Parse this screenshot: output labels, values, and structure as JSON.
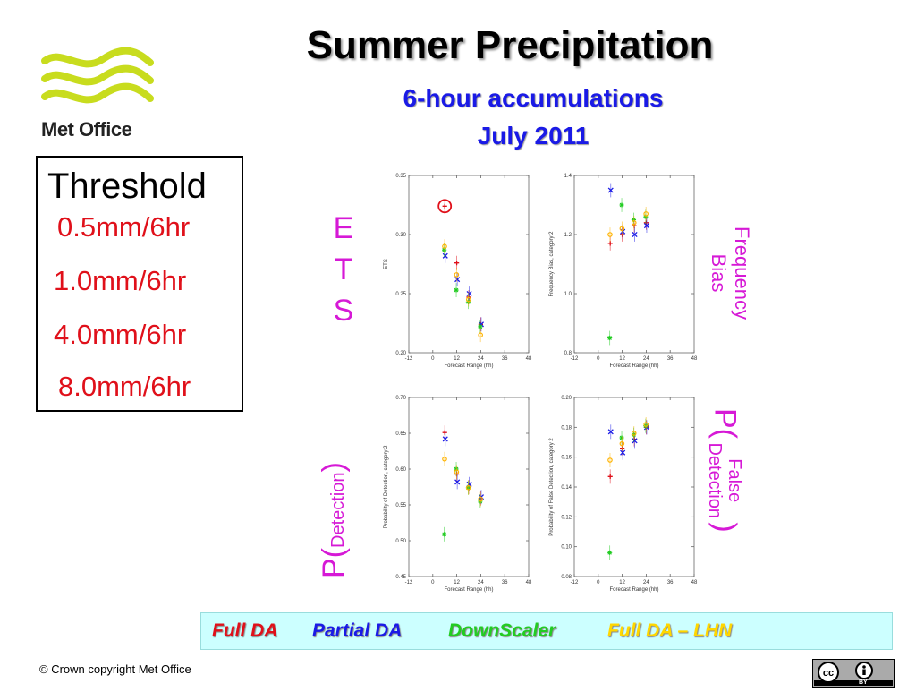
{
  "slide": {
    "logo_text": "Met Office",
    "title": "Summer Precipitation",
    "subtitle_line1": "6-hour accumulations",
    "subtitle_line2": "July 2011",
    "threshold": {
      "title": "Threshold",
      "values": [
        "0.5mm/6hr",
        "1.0mm/6hr",
        "4.0mm/6hr",
        "8.0mm/6hr"
      ]
    },
    "side_labels": {
      "ets": [
        "E",
        "T",
        "S"
      ],
      "freq_bias": "Frequency Bias",
      "p_detection_prefix": "P(",
      "p_detection_text": "Detection",
      "p_detection_suffix": ")",
      "p_false_prefix": "P(",
      "p_false_text1": "False",
      "p_false_text2": "Detection",
      "p_false_suffix": ")"
    },
    "legend": [
      "Full DA",
      "Partial DA",
      "DownScaler",
      "Full DA – LHN"
    ],
    "copyright": "© Crown copyright   Met Office",
    "cc_badge": "BY"
  },
  "colors": {
    "title_blue": "#1a1ae6",
    "threshold_red": "#e0101a",
    "magenta": "#d619d6",
    "full_da": "#e0101a",
    "partial_da": "#1a1ae6",
    "downscaler": "#22cc22",
    "full_da_lhn": "#ffb300",
    "legend_bg": "#ccffff",
    "logo_green": "#c8dc1e"
  },
  "chart_data": [
    {
      "type": "scatter",
      "title": "",
      "xlabel": "Forecast Range (hh)",
      "ylabel": "ETS",
      "xlim": [
        -12,
        48
      ],
      "ylim": [
        0.2,
        0.35
      ],
      "xticks": [
        -12,
        0,
        12,
        24,
        36,
        48
      ],
      "yticks": [
        0.2,
        0.25,
        0.3,
        0.35
      ],
      "ytick_labels": [
        "0.20",
        "0.25",
        "0.30",
        "0.35"
      ],
      "grid": false,
      "highlight": {
        "x": 6,
        "y": 0.324
      },
      "series": [
        {
          "name": "Full DA",
          "marker": "+",
          "color": "#e0101a",
          "x": [
            6,
            12,
            18,
            24
          ],
          "y": [
            0.324,
            0.276,
            0.247,
            0.224
          ]
        },
        {
          "name": "Partial DA",
          "marker": "x",
          "color": "#1a1ae6",
          "x": [
            6,
            12,
            18,
            24
          ],
          "y": [
            0.282,
            0.262,
            0.25,
            0.224
          ]
        },
        {
          "name": "DownScaler",
          "marker": "*",
          "color": "#22cc22",
          "x": [
            6,
            12,
            18,
            24
          ],
          "y": [
            0.287,
            0.253,
            0.243,
            0.222
          ]
        },
        {
          "name": "Full DA – LHN",
          "marker": "o",
          "color": "#ffb300",
          "x": [
            6,
            12,
            18,
            24
          ],
          "y": [
            0.29,
            0.266,
            0.245,
            0.215
          ]
        }
      ]
    },
    {
      "type": "scatter",
      "title": "",
      "xlabel": "Forecast Range (hh)",
      "ylabel": "Frequency Bias, category 2",
      "xlim": [
        -12,
        48
      ],
      "ylim": [
        0.8,
        1.4
      ],
      "xticks": [
        -12,
        0,
        12,
        24,
        36,
        48
      ],
      "yticks": [
        0.8,
        1.0,
        1.2,
        1.4
      ],
      "ytick_labels": [
        "0.8",
        "1.0",
        "1.2",
        "1.4"
      ],
      "grid": false,
      "series": [
        {
          "name": "Full DA",
          "marker": "+",
          "color": "#e0101a",
          "x": [
            6,
            12,
            18,
            24
          ],
          "y": [
            1.17,
            1.2,
            1.23,
            1.24
          ]
        },
        {
          "name": "Partial DA",
          "marker": "x",
          "color": "#1a1ae6",
          "x": [
            6,
            12,
            18,
            24
          ],
          "y": [
            1.35,
            1.21,
            1.2,
            1.23
          ]
        },
        {
          "name": "DownScaler",
          "marker": "*",
          "color": "#22cc22",
          "x": [
            6,
            12,
            18,
            24
          ],
          "y": [
            0.85,
            1.3,
            1.25,
            1.26
          ]
        },
        {
          "name": "Full DA – LHN",
          "marker": "o",
          "color": "#ffb300",
          "x": [
            6,
            12,
            18,
            24
          ],
          "y": [
            1.2,
            1.22,
            1.24,
            1.27
          ]
        }
      ]
    },
    {
      "type": "scatter",
      "title": "",
      "xlabel": "Forecast Range (hh)",
      "ylabel": "Probability of Detection, category 2",
      "xlim": [
        -12,
        48
      ],
      "ylim": [
        0.45,
        0.7
      ],
      "xticks": [
        -12,
        0,
        12,
        24,
        36,
        48
      ],
      "yticks": [
        0.45,
        0.5,
        0.55,
        0.6,
        0.65,
        0.7
      ],
      "ytick_labels": [
        "0.45",
        "0.50",
        "0.55",
        "0.60",
        "0.65",
        "0.70"
      ],
      "grid": false,
      "series": [
        {
          "name": "Full DA",
          "marker": "+",
          "color": "#e0101a",
          "x": [
            6,
            12,
            18,
            24
          ],
          "y": [
            0.651,
            0.593,
            0.575,
            0.559
          ]
        },
        {
          "name": "Partial DA",
          "marker": "x",
          "color": "#1a1ae6",
          "x": [
            6,
            12,
            18,
            24
          ],
          "y": [
            0.642,
            0.582,
            0.579,
            0.561
          ]
        },
        {
          "name": "DownScaler",
          "marker": "*",
          "color": "#22cc22",
          "x": [
            6,
            12,
            18,
            24
          ],
          "y": [
            0.509,
            0.6,
            0.574,
            0.555
          ]
        },
        {
          "name": "Full DA – LHN",
          "marker": "o",
          "color": "#ffb300",
          "x": [
            6,
            12,
            18,
            24
          ],
          "y": [
            0.614,
            0.596,
            0.574,
            0.558
          ]
        }
      ]
    },
    {
      "type": "scatter",
      "title": "",
      "xlabel": "Forecast Range (hh)",
      "ylabel": "Probability of False Detection, category 2",
      "xlim": [
        -12,
        48
      ],
      "ylim": [
        0.08,
        0.2
      ],
      "xticks": [
        -12,
        0,
        12,
        24,
        36,
        48
      ],
      "yticks": [
        0.08,
        0.1,
        0.12,
        0.14,
        0.16,
        0.18,
        0.2
      ],
      "ytick_labels": [
        "0.08",
        "0.10",
        "0.12",
        "0.14",
        "0.16",
        "0.18",
        "0.20"
      ],
      "grid": false,
      "series": [
        {
          "name": "Full DA",
          "marker": "+",
          "color": "#e0101a",
          "x": [
            6,
            12,
            18,
            24
          ],
          "y": [
            0.147,
            0.166,
            0.172,
            0.18
          ]
        },
        {
          "name": "Partial DA",
          "marker": "x",
          "color": "#1a1ae6",
          "x": [
            6,
            12,
            18,
            24
          ],
          "y": [
            0.177,
            0.163,
            0.171,
            0.18
          ]
        },
        {
          "name": "DownScaler",
          "marker": "*",
          "color": "#22cc22",
          "x": [
            6,
            12,
            18,
            24
          ],
          "y": [
            0.096,
            0.173,
            0.175,
            0.181
          ]
        },
        {
          "name": "Full DA – LHN",
          "marker": "o",
          "color": "#ffb300",
          "x": [
            6,
            12,
            18,
            24
          ],
          "y": [
            0.158,
            0.169,
            0.176,
            0.182
          ]
        }
      ]
    }
  ]
}
